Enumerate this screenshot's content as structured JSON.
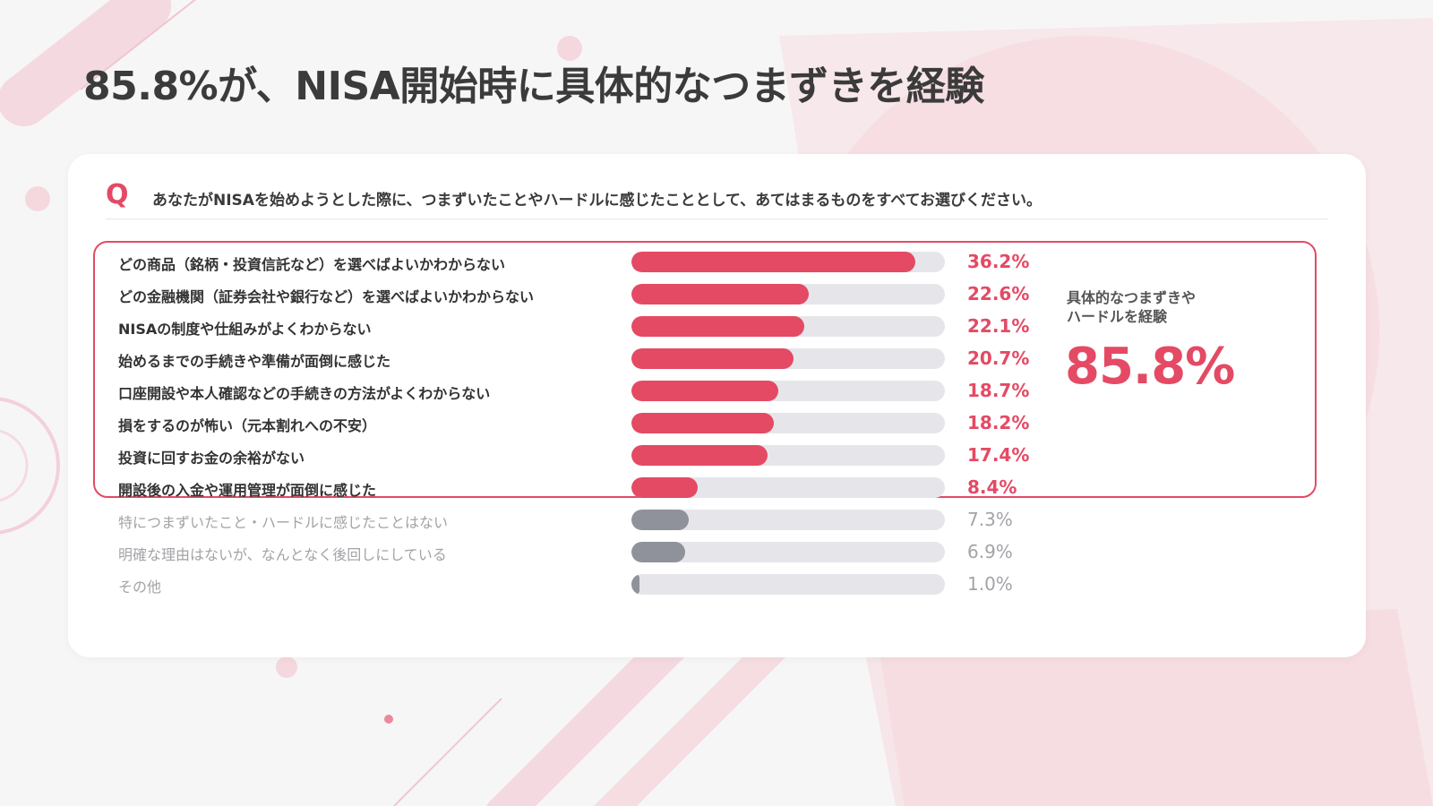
{
  "title": "85.8%が、NISA開始時に具体的なつまずきを経験",
  "question": {
    "mark": "Q",
    "text": "あなたがNISAを始めようとした際に、つまずいたことやハードルに感じたこととして、あてはまるものをすべてお選びください。"
  },
  "summary": {
    "label_line1": "具体的なつまずきや",
    "label_line2": "ハードルを経験",
    "value": "85.8%"
  },
  "colors": {
    "accent": "#e44a64",
    "muted_bar": "#8f919b",
    "track": "#e6e6ea"
  },
  "chart_data": {
    "type": "bar",
    "orientation": "horizontal",
    "title": "",
    "xlim": [
      0,
      40
    ],
    "categories": [
      "どの商品（銘柄・投資信託など）を選べばよいかわからない",
      "どの金融機関（証券会社や銀行など）を選べばよいかわからない",
      "NISAの制度や仕組みがよくわからない",
      "始めるまでの手続きや準備が面倒に感じた",
      "口座開設や本人確認などの手続きの方法がよくわからない",
      "損をするのが怖い（元本割れへの不安）",
      "投資に回すお金の余裕がない",
      "開設後の入金や運用管理が面倒に感じた",
      "特につまずいたこと・ハードルに感じたことはない",
      "明確な理由はないが、なんとなく後回しにしている",
      "その他"
    ],
    "values": [
      36.2,
      22.6,
      22.1,
      20.7,
      18.7,
      18.2,
      17.4,
      8.4,
      7.3,
      6.9,
      1.0
    ],
    "value_labels": [
      "36.2%",
      "22.6%",
      "22.1%",
      "20.7%",
      "18.7%",
      "18.2%",
      "17.4%",
      "8.4%",
      "7.3%",
      "6.9%",
      "1.0%"
    ],
    "highlighted": [
      true,
      true,
      true,
      true,
      true,
      true,
      true,
      true,
      false,
      false,
      false
    ]
  }
}
